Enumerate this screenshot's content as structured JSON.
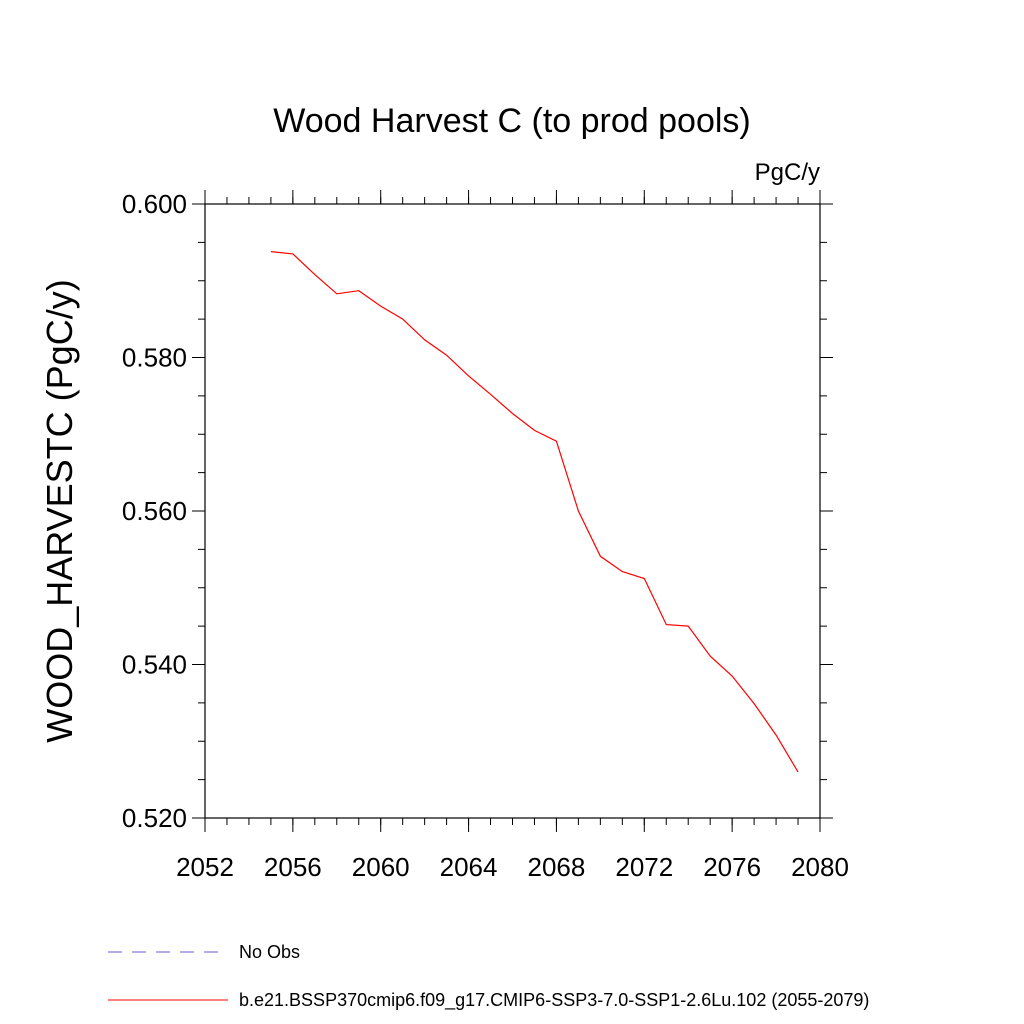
{
  "chart_data": {
    "type": "line",
    "title": "Wood Harvest C (to prod pools)",
    "units_label": "PgC/y",
    "xlabel": "",
    "ylabel": "WOOD_HARVESTC  (PgC/y)",
    "xlim": [
      2052,
      2080
    ],
    "ylim": [
      0.52,
      0.6
    ],
    "x_ticks": [
      2052,
      2056,
      2060,
      2064,
      2068,
      2072,
      2076,
      2080
    ],
    "x_tick_labels": [
      "2052",
      "2056",
      "2060",
      "2064",
      "2068",
      "2072",
      "2076",
      "2080"
    ],
    "y_ticks": [
      0.52,
      0.54,
      0.56,
      0.58,
      0.6
    ],
    "y_tick_labels": [
      "0.520",
      "0.540",
      "0.560",
      "0.580",
      "0.600"
    ],
    "y_minor_step": 0.005,
    "x_minor_step": 1,
    "grid": false,
    "legend_position": "bottom",
    "series": [
      {
        "name": "b.e21.BSSP370cmip6.f09_g17.CMIP6-SSP3-7.0-SSP1-2.6Lu.102 (2055-2079)",
        "color": "#ff0000",
        "style": "solid",
        "x": [
          2055,
          2056,
          2057,
          2058,
          2059,
          2060,
          2061,
          2062,
          2063,
          2064,
          2065,
          2066,
          2067,
          2068,
          2069,
          2070,
          2071,
          2072,
          2073,
          2074,
          2075,
          2076,
          2077,
          2078,
          2079
        ],
        "y": [
          0.5938,
          0.5935,
          0.5908,
          0.5883,
          0.5887,
          0.5867,
          0.585,
          0.5823,
          0.5803,
          0.5776,
          0.5752,
          0.5727,
          0.5705,
          0.5691,
          0.56,
          0.5541,
          0.5521,
          0.5512,
          0.5452,
          0.545,
          0.5411,
          0.5385,
          0.5349,
          0.5308,
          0.526
        ]
      }
    ],
    "legend": [
      {
        "label": "No Obs",
        "color": "#6a5acd",
        "style": "dashed"
      },
      {
        "label": "b.e21.BSSP370cmip6.f09_g17.CMIP6-SSP3-7.0-SSP1-2.6Lu.102 (2055-2079)",
        "color": "#ff0000",
        "style": "solid"
      }
    ]
  }
}
